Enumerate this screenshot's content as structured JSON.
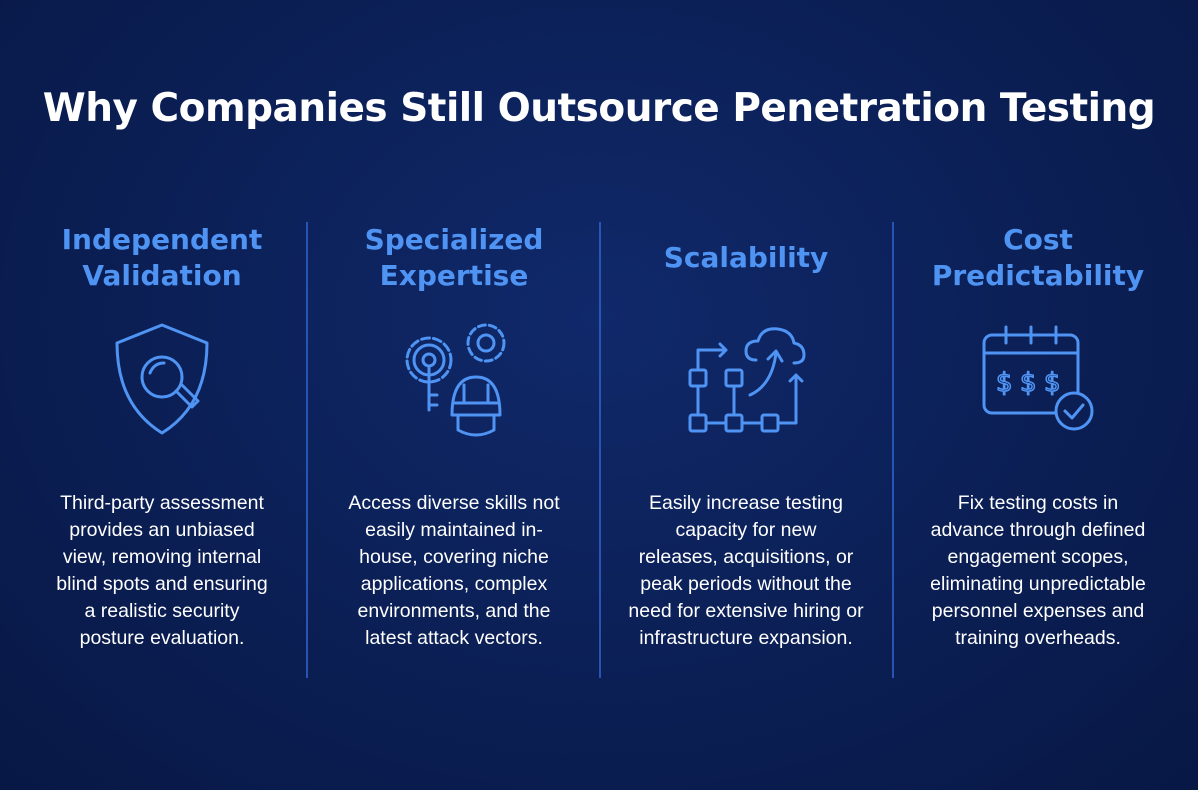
{
  "header": {
    "title": "Why Companies Still Outsource Penetration Testing"
  },
  "columns": [
    {
      "heading": [
        "Independent",
        "Validation"
      ],
      "text": [
        "Third-party assessment",
        "provides an unbiased",
        "view, removing internal",
        "blind spots and ensuring",
        "a realistic security",
        "posture evaluation."
      ]
    },
    {
      "heading": [
        "Specialized",
        "Expertise"
      ],
      "text": [
        "Access diverse skills not",
        "easily maintained in-",
        "house, covering niche",
        "applications, complex",
        "environments, and the",
        "latest attack vectors."
      ]
    },
    {
      "heading": [
        "Scalability"
      ],
      "text": [
        "Easily increase testing",
        "capacity for new",
        "releases, acquisitions, or",
        "peak periods without the",
        "need for extensive hiring or",
        "infrastructure expansion."
      ]
    },
    {
      "heading": [
        "Cost",
        "Predictability"
      ],
      "text": [
        "Fix testing costs in",
        "advance through defined",
        "engagement scopes,",
        "eliminating unpredictable",
        "personnel expenses and",
        "training overheads."
      ]
    }
  ]
}
